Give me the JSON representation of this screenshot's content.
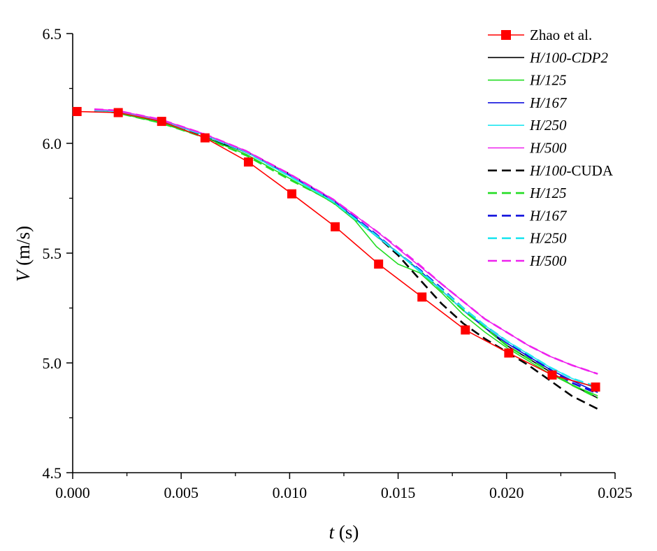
{
  "chart_data": {
    "type": "line",
    "xlabel": {
      "var": "t",
      "unit": " (s)"
    },
    "ylabel": {
      "var": "V",
      "unit": " (m/s)"
    },
    "xlim": [
      0,
      0.025
    ],
    "ylim": [
      4.5,
      6.5
    ],
    "x_ticks": [
      0,
      0.005,
      0.01,
      0.015,
      0.02,
      0.025
    ],
    "x_tick_labels": [
      "0.000",
      "0.005",
      "0.010",
      "0.015",
      "0.020",
      "0.025"
    ],
    "y_ticks": [
      4.5,
      5.0,
      5.5,
      6.0,
      6.5
    ],
    "y_tick_labels": [
      "4.5",
      "5.0",
      "5.5",
      "6.0",
      "6.5"
    ],
    "legend_position": "top-right",
    "series": [
      {
        "name": "Zhao et al.",
        "legend_parts": [
          {
            "t": "Zhao et al.",
            "i": false
          }
        ],
        "color": "#ff0000",
        "dash": "solid",
        "marker": "square",
        "points": [
          [
            0.0002,
            6.145
          ],
          [
            0.0021,
            6.14
          ],
          [
            0.0041,
            6.1
          ],
          [
            0.0061,
            6.025
          ],
          [
            0.0081,
            5.915
          ],
          [
            0.0101,
            5.77
          ],
          [
            0.0121,
            5.62
          ],
          [
            0.0141,
            5.45
          ],
          [
            0.0161,
            5.3
          ],
          [
            0.0181,
            5.15
          ],
          [
            0.0201,
            5.045
          ],
          [
            0.0221,
            4.945
          ],
          [
            0.0241,
            4.89
          ]
        ]
      },
      {
        "name": "H/100-CDP2",
        "legend_parts": [
          {
            "t": "H/100-CDP2",
            "i": true
          }
        ],
        "color": "#000000",
        "dash": "solid",
        "marker": "none",
        "points": [
          [
            0.001,
            6.15
          ],
          [
            0.002,
            6.14
          ],
          [
            0.004,
            6.1
          ],
          [
            0.006,
            6.03
          ],
          [
            0.008,
            5.96
          ],
          [
            0.01,
            5.86
          ],
          [
            0.012,
            5.74
          ],
          [
            0.014,
            5.58
          ],
          [
            0.015,
            5.5
          ],
          [
            0.016,
            5.42
          ],
          [
            0.017,
            5.33
          ],
          [
            0.018,
            5.24
          ],
          [
            0.019,
            5.16
          ],
          [
            0.02,
            5.08
          ],
          [
            0.021,
            5.02
          ],
          [
            0.022,
            4.96
          ],
          [
            0.023,
            4.9
          ],
          [
            0.0242,
            4.84
          ]
        ]
      },
      {
        "name": "H/125",
        "legend_parts": [
          {
            "t": "H/125",
            "i": true
          }
        ],
        "color": "#22dd22",
        "dash": "solid",
        "marker": "none",
        "points": [
          [
            0.001,
            6.15
          ],
          [
            0.002,
            6.14
          ],
          [
            0.004,
            6.095
          ],
          [
            0.006,
            6.03
          ],
          [
            0.008,
            5.95
          ],
          [
            0.01,
            5.84
          ],
          [
            0.012,
            5.73
          ],
          [
            0.013,
            5.65
          ],
          [
            0.014,
            5.53
          ],
          [
            0.015,
            5.45
          ],
          [
            0.016,
            5.41
          ],
          [
            0.017,
            5.32
          ],
          [
            0.018,
            5.22
          ],
          [
            0.019,
            5.14
          ],
          [
            0.02,
            5.07
          ],
          [
            0.021,
            5.01
          ],
          [
            0.022,
            4.95
          ],
          [
            0.023,
            4.9
          ],
          [
            0.0242,
            4.85
          ]
        ]
      },
      {
        "name": "H/167",
        "legend_parts": [
          {
            "t": "H/167",
            "i": true
          }
        ],
        "color": "#1010dd",
        "dash": "solid",
        "marker": "none",
        "points": [
          [
            0.001,
            6.15
          ],
          [
            0.002,
            6.145
          ],
          [
            0.004,
            6.105
          ],
          [
            0.006,
            6.04
          ],
          [
            0.008,
            5.96
          ],
          [
            0.01,
            5.855
          ],
          [
            0.012,
            5.74
          ],
          [
            0.014,
            5.58
          ],
          [
            0.015,
            5.5
          ],
          [
            0.016,
            5.42
          ],
          [
            0.017,
            5.33
          ],
          [
            0.018,
            5.24
          ],
          [
            0.019,
            5.16
          ],
          [
            0.02,
            5.09
          ],
          [
            0.021,
            5.03
          ],
          [
            0.022,
            4.97
          ],
          [
            0.023,
            4.92
          ],
          [
            0.0242,
            4.865
          ]
        ]
      },
      {
        "name": "H/250",
        "legend_parts": [
          {
            "t": "H/250",
            "i": true
          }
        ],
        "color": "#22e6f0",
        "dash": "solid",
        "marker": "none",
        "points": [
          [
            0.001,
            6.15
          ],
          [
            0.002,
            6.145
          ],
          [
            0.004,
            6.105
          ],
          [
            0.006,
            6.04
          ],
          [
            0.008,
            5.96
          ],
          [
            0.01,
            5.85
          ],
          [
            0.012,
            5.735
          ],
          [
            0.014,
            5.575
          ],
          [
            0.015,
            5.5
          ],
          [
            0.016,
            5.415
          ],
          [
            0.017,
            5.33
          ],
          [
            0.018,
            5.24
          ],
          [
            0.019,
            5.17
          ],
          [
            0.02,
            5.1
          ],
          [
            0.021,
            5.04
          ],
          [
            0.022,
            4.98
          ],
          [
            0.023,
            4.93
          ],
          [
            0.0242,
            4.88
          ]
        ]
      },
      {
        "name": "H/500",
        "legend_parts": [
          {
            "t": "H/500",
            "i": true
          }
        ],
        "color": "#ee22ee",
        "dash": "solid",
        "marker": "none",
        "points": [
          [
            0.001,
            6.155
          ],
          [
            0.002,
            6.15
          ],
          [
            0.004,
            6.11
          ],
          [
            0.006,
            6.045
          ],
          [
            0.008,
            5.965
          ],
          [
            0.01,
            5.86
          ],
          [
            0.012,
            5.745
          ],
          [
            0.014,
            5.6
          ],
          [
            0.015,
            5.52
          ],
          [
            0.016,
            5.44
          ],
          [
            0.017,
            5.36
          ],
          [
            0.018,
            5.28
          ],
          [
            0.019,
            5.2
          ],
          [
            0.02,
            5.14
          ],
          [
            0.021,
            5.08
          ],
          [
            0.022,
            5.03
          ],
          [
            0.023,
            4.99
          ],
          [
            0.0242,
            4.95
          ]
        ]
      },
      {
        "name": "H/100-CUDA",
        "legend_parts": [
          {
            "t": "H/100",
            "i": true
          },
          {
            "t": "-CUDA",
            "i": false
          }
        ],
        "color": "#000000",
        "dash": "dashed",
        "marker": "none",
        "points": [
          [
            0.001,
            6.15
          ],
          [
            0.002,
            6.14
          ],
          [
            0.004,
            6.1
          ],
          [
            0.006,
            6.035
          ],
          [
            0.008,
            5.96
          ],
          [
            0.01,
            5.86
          ],
          [
            0.012,
            5.74
          ],
          [
            0.014,
            5.58
          ],
          [
            0.015,
            5.49
          ],
          [
            0.016,
            5.38
          ],
          [
            0.017,
            5.27
          ],
          [
            0.018,
            5.18
          ],
          [
            0.019,
            5.11
          ],
          [
            0.02,
            5.05
          ],
          [
            0.021,
            4.99
          ],
          [
            0.022,
            4.92
          ],
          [
            0.023,
            4.85
          ],
          [
            0.0242,
            4.79
          ]
        ]
      },
      {
        "name": "H/125 (CUDA)",
        "legend_parts": [
          {
            "t": "H/125",
            "i": true
          }
        ],
        "color": "#22dd22",
        "dash": "dashed",
        "marker": "none",
        "points": [
          [
            0.001,
            6.15
          ],
          [
            0.002,
            6.14
          ],
          [
            0.004,
            6.095
          ],
          [
            0.006,
            6.03
          ],
          [
            0.008,
            5.945
          ],
          [
            0.01,
            5.835
          ],
          [
            0.0115,
            5.76
          ],
          [
            0.012,
            5.73
          ],
          [
            0.014,
            5.58
          ],
          [
            0.015,
            5.5
          ],
          [
            0.016,
            5.42
          ],
          [
            0.017,
            5.33
          ],
          [
            0.018,
            5.24
          ],
          [
            0.019,
            5.16
          ],
          [
            0.02,
            5.08
          ],
          [
            0.021,
            5.02
          ],
          [
            0.022,
            4.96
          ],
          [
            0.023,
            4.9
          ],
          [
            0.0242,
            4.84
          ]
        ]
      },
      {
        "name": "H/167 (CUDA)",
        "legend_parts": [
          {
            "t": "H/167",
            "i": true
          }
        ],
        "color": "#1010dd",
        "dash": "dashed",
        "marker": "none",
        "points": [
          [
            0.001,
            6.15
          ],
          [
            0.002,
            6.145
          ],
          [
            0.004,
            6.105
          ],
          [
            0.006,
            6.04
          ],
          [
            0.008,
            5.96
          ],
          [
            0.01,
            5.855
          ],
          [
            0.012,
            5.74
          ],
          [
            0.014,
            5.585
          ],
          [
            0.015,
            5.5
          ],
          [
            0.016,
            5.425
          ],
          [
            0.017,
            5.34
          ],
          [
            0.018,
            5.25
          ],
          [
            0.019,
            5.17
          ],
          [
            0.02,
            5.1
          ],
          [
            0.021,
            5.03
          ],
          [
            0.022,
            4.97
          ],
          [
            0.023,
            4.91
          ],
          [
            0.0242,
            4.86
          ]
        ]
      },
      {
        "name": "H/250 (CUDA)",
        "legend_parts": [
          {
            "t": "H/250",
            "i": true
          }
        ],
        "color": "#22e6f0",
        "dash": "dashed",
        "marker": "none",
        "points": [
          [
            0.001,
            6.15
          ],
          [
            0.002,
            6.145
          ],
          [
            0.004,
            6.105
          ],
          [
            0.006,
            6.04
          ],
          [
            0.008,
            5.96
          ],
          [
            0.01,
            5.85
          ],
          [
            0.012,
            5.735
          ],
          [
            0.014,
            5.58
          ],
          [
            0.015,
            5.5
          ],
          [
            0.016,
            5.42
          ],
          [
            0.017,
            5.335
          ],
          [
            0.018,
            5.25
          ],
          [
            0.019,
            5.17
          ],
          [
            0.02,
            5.1
          ],
          [
            0.021,
            5.04
          ],
          [
            0.022,
            4.98
          ],
          [
            0.023,
            4.93
          ],
          [
            0.0242,
            4.89
          ]
        ]
      },
      {
        "name": "H/500 (CUDA)",
        "legend_parts": [
          {
            "t": "H/500",
            "i": true
          }
        ],
        "color": "#ee22ee",
        "dash": "dashed",
        "marker": "none",
        "points": [
          [
            0.001,
            6.155
          ],
          [
            0.002,
            6.15
          ],
          [
            0.004,
            6.11
          ],
          [
            0.006,
            6.045
          ],
          [
            0.008,
            5.965
          ],
          [
            0.01,
            5.86
          ],
          [
            0.012,
            5.745
          ],
          [
            0.014,
            5.6
          ],
          [
            0.015,
            5.525
          ],
          [
            0.016,
            5.445
          ],
          [
            0.017,
            5.36
          ],
          [
            0.018,
            5.28
          ],
          [
            0.019,
            5.2
          ],
          [
            0.02,
            5.14
          ],
          [
            0.021,
            5.08
          ],
          [
            0.022,
            5.03
          ],
          [
            0.023,
            4.99
          ],
          [
            0.0242,
            4.95
          ]
        ]
      }
    ]
  }
}
